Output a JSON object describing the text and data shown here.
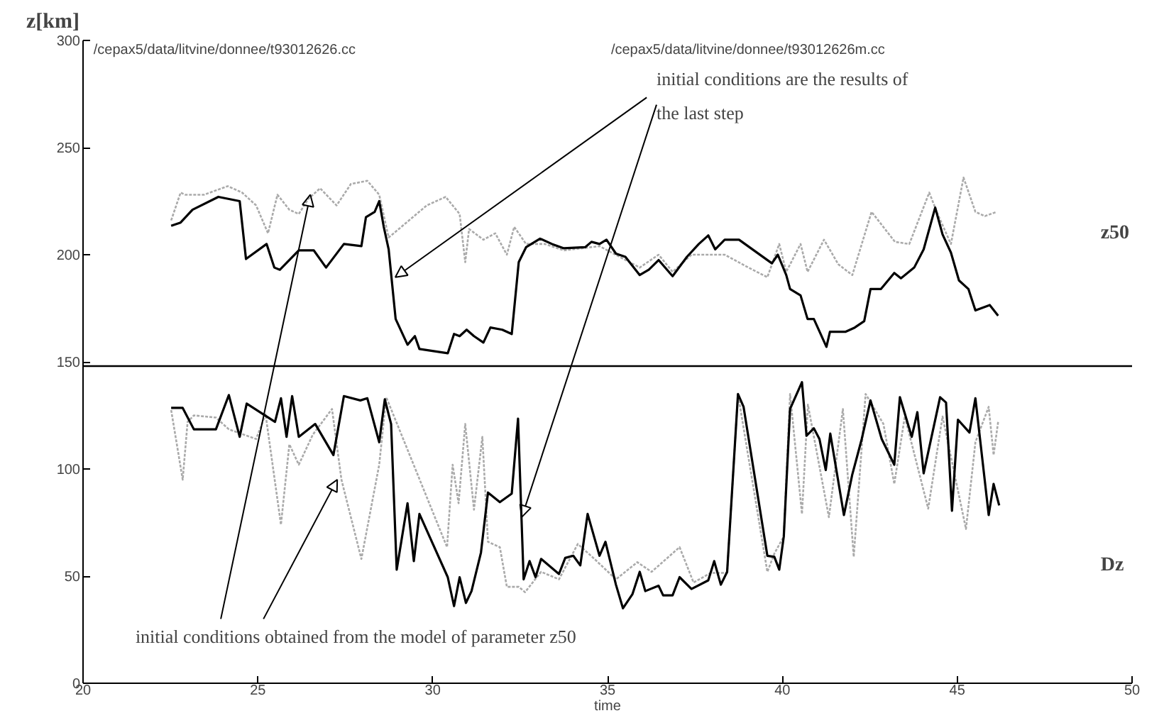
{
  "chart_data": {
    "type": "line",
    "title": "z[km]",
    "xlabel": "time",
    "xlim": [
      20,
      50
    ],
    "xticks": [
      20,
      25,
      30,
      35,
      40,
      45,
      50
    ],
    "ylim": [
      0,
      300
    ],
    "yticks": [
      0,
      50,
      100,
      150,
      200,
      250,
      300
    ],
    "grid": false,
    "marker": "none",
    "ref_lines": [
      {
        "axis": "y",
        "value": 148,
        "color": "#000000"
      }
    ],
    "annotations": [
      "/cepax5/data/litvine/donnee/t93012626.cc",
      "/cepax5/data/litvine/donnee/t93012626m.cc",
      {
        "text": "initial conditions are the results of\nthe last step",
        "x": 28.93,
        "y": 189.5
      },
      {
        "text": "initial conditions obtained from the model of parameter z50",
        "x": 27.27,
        "y": 95
      },
      "z50",
      "Dz"
    ],
    "series": [
      {
        "color": "#aaaaaa",
        "line_style": "dotted",
        "x": [
          22.52,
          22.79,
          22.92,
          23.46,
          24.14,
          24.55,
          24.95,
          25.29,
          25.56,
          25.9,
          26.17,
          26.44,
          26.78,
          27.25,
          27.66,
          28.13,
          28.47,
          28.74,
          29.83,
          30.37,
          30.77,
          30.93,
          31.04,
          31.45,
          31.79,
          32.12,
          32.33,
          32.67,
          33.21,
          33.75,
          34.77,
          35.92,
          36.46,
          36.86,
          37.4,
          38.35,
          39.03,
          39.57,
          39.91,
          40.11,
          40.52,
          40.72,
          41.19,
          41.6,
          42.0,
          42.55,
          43.22,
          43.63,
          44.2,
          44.44,
          44.82,
          45.18,
          45.52,
          45.79,
          46.13
        ],
        "values": [
          216,
          229,
          228,
          228,
          232,
          229,
          223,
          210,
          228,
          221,
          219,
          226,
          231,
          223,
          233,
          234.5,
          228,
          208,
          223,
          227,
          219,
          196.5,
          212,
          207,
          210,
          200,
          213,
          205,
          205,
          202,
          204,
          194,
          200,
          192,
          200,
          200,
          194,
          189.5,
          205,
          192,
          205,
          192,
          207,
          195.5,
          190.5,
          220,
          206,
          205,
          229,
          219,
          205,
          236,
          220,
          218,
          220
        ]
      },
      {
        "color": "#000000",
        "line_style": "solid",
        "x": [
          22.52,
          22.79,
          23.13,
          23.87,
          24.48,
          24.66,
          25.25,
          25.47,
          25.63,
          26.17,
          26.6,
          26.95,
          27.46,
          27.96,
          28.09,
          28.34,
          28.47,
          28.6,
          28.74,
          28.94,
          29.28,
          29.49,
          29.62,
          30.43,
          30.61,
          30.77,
          30.97,
          31.18,
          31.45,
          31.65,
          31.99,
          32.26,
          32.46,
          32.67,
          33.07,
          33.41,
          33.75,
          34.36,
          34.54,
          34.77,
          34.97,
          35.24,
          35.51,
          35.92,
          36.18,
          36.46,
          36.86,
          37.27,
          37.61,
          37.88,
          38.08,
          38.35,
          38.76,
          39.7,
          39.87,
          40.11,
          40.22,
          40.52,
          40.72,
          40.9,
          41.26,
          41.36,
          41.8,
          42.07,
          42.34,
          42.52,
          42.82,
          43.2,
          43.39,
          43.77,
          44.04,
          44.37,
          44.58,
          44.82,
          45.05,
          45.32,
          45.52,
          45.93,
          46.17
        ],
        "values": [
          213.5,
          215,
          221,
          227,
          225,
          198,
          205,
          194,
          193,
          202,
          202,
          194,
          205,
          204,
          217.5,
          220,
          225,
          213,
          202.5,
          170,
          158,
          162,
          156,
          154,
          163,
          162,
          165,
          162,
          159,
          166,
          165,
          163,
          196.5,
          203.5,
          207.5,
          205,
          203,
          203.5,
          206,
          205,
          207,
          200.5,
          199,
          190.5,
          193,
          197.5,
          190,
          199,
          205,
          209,
          202.5,
          207,
          207,
          196,
          200,
          190.5,
          184,
          181,
          170,
          170,
          157,
          164,
          164,
          166,
          169,
          184,
          184,
          191.5,
          189,
          194,
          202.5,
          222,
          209.5,
          201,
          188,
          184,
          174,
          176.5,
          171.5
        ]
      },
      {
        "color": "#aaaaaa",
        "line_style": "dotted",
        "x": [
          22.52,
          22.85,
          22.99,
          23.17,
          23.8,
          24.17,
          24.95,
          25.22,
          25.66,
          25.9,
          26.17,
          26.57,
          27.12,
          27.39,
          27.96,
          28.47,
          28.67,
          28.87,
          30.41,
          30.57,
          30.74,
          30.93,
          31.18,
          31.42,
          31.58,
          31.92,
          32.12,
          32.46,
          32.64,
          33.1,
          33.61,
          34.15,
          34.56,
          35.24,
          35.85,
          36.26,
          37.06,
          37.46,
          37.95,
          38.42,
          38.73,
          39.57,
          39.77,
          40.04,
          40.22,
          40.56,
          40.73,
          41.33,
          41.73,
          42.04,
          42.38,
          42.89,
          43.2,
          43.5,
          44.17,
          44.58,
          45.25,
          45.52,
          45.9,
          46.04,
          46.17
        ],
        "values": [
          127.5,
          95,
          122,
          125,
          124,
          118.5,
          114,
          125.5,
          74,
          111.5,
          102,
          116,
          128,
          95,
          58,
          102,
          133.5,
          125.5,
          63.5,
          102,
          84,
          121,
          81,
          115,
          66,
          63.5,
          45,
          45,
          42.5,
          52,
          48.5,
          65,
          59,
          48.5,
          56.5,
          52,
          63.5,
          47,
          51.5,
          51.5,
          135,
          52,
          60.5,
          68.5,
          135,
          79,
          130,
          77.5,
          128,
          59,
          135,
          121,
          93,
          124.5,
          81.5,
          124.5,
          72,
          112.5,
          129,
          106.5,
          122
        ]
      },
      {
        "color": "#000000",
        "line_style": "solid",
        "x": [
          22.52,
          22.85,
          23.17,
          23.8,
          24.17,
          24.48,
          24.68,
          25.49,
          25.66,
          25.82,
          25.98,
          26.17,
          26.64,
          27.16,
          27.46,
          27.93,
          28.13,
          28.47,
          28.63,
          28.81,
          28.97,
          29.28,
          29.46,
          29.62,
          30.43,
          30.61,
          30.77,
          30.95,
          31.11,
          31.38,
          31.58,
          31.92,
          32.26,
          32.44,
          32.6,
          32.77,
          32.94,
          33.1,
          33.61,
          33.79,
          34.02,
          34.22,
          34.43,
          34.77,
          34.94,
          35.24,
          35.44,
          35.71,
          35.92,
          36.08,
          36.46,
          36.59,
          36.86,
          37.06,
          37.4,
          37.88,
          38.05,
          38.24,
          38.42,
          38.73,
          38.89,
          39.57,
          39.77,
          39.91,
          40.04,
          40.22,
          40.56,
          40.69,
          40.9,
          41.06,
          41.24,
          41.37,
          41.76,
          42.0,
          42.27,
          42.52,
          42.84,
          43.2,
          43.36,
          43.7,
          43.86,
          44.04,
          44.51,
          44.68,
          44.85,
          45.02,
          45.35,
          45.52,
          45.9,
          46.04,
          46.2
        ],
        "values": [
          128.5,
          128.5,
          118.5,
          118.5,
          134.5,
          115,
          130.5,
          122,
          133,
          115,
          134,
          115,
          121,
          106.5,
          134,
          132,
          133,
          112.5,
          132.5,
          121,
          53,
          84,
          57,
          79,
          49.5,
          36,
          49.5,
          37.5,
          43,
          61,
          89,
          84.5,
          88.5,
          123.5,
          48.5,
          57,
          49.5,
          58,
          51,
          58.5,
          59.5,
          55,
          79,
          59.5,
          66,
          46,
          35,
          41.5,
          52,
          43,
          45.5,
          41,
          41,
          49.5,
          44,
          48,
          57,
          46,
          52,
          135,
          129,
          59.5,
          59,
          53,
          68.5,
          128,
          140.5,
          115.5,
          119,
          114,
          99.5,
          116.5,
          78.5,
          97.5,
          114,
          132,
          114,
          102,
          133.5,
          115,
          126.5,
          98,
          133.5,
          131,
          80.5,
          123,
          117,
          133,
          78.5,
          93,
          83
        ]
      }
    ]
  }
}
